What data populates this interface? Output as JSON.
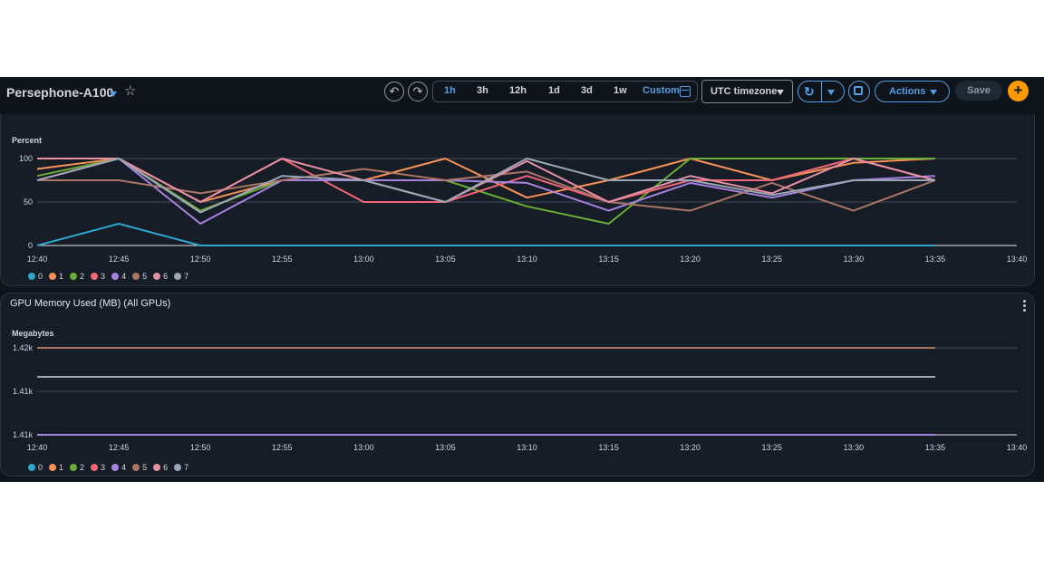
{
  "header": {
    "title": "Persephone-A100",
    "ranges": [
      "1h",
      "3h",
      "12h",
      "1d",
      "3d",
      "1w"
    ],
    "active_range": "1h",
    "custom_label": "Custom",
    "timezone": "UTC timezone",
    "actions_label": "Actions",
    "save_label": "Save"
  },
  "colors": {
    "accent": "#539fe5",
    "add_button": "#ff9900",
    "background": "#0f141a",
    "panel": "#161d26"
  },
  "icons": [
    "undo-icon",
    "redo-icon",
    "calendar-icon",
    "refresh-icon",
    "fullscreen-icon",
    "star-icon",
    "plus-icon",
    "kebab-icon"
  ],
  "series_colors": [
    "#2ea5cf",
    "#f89256",
    "#69ae34",
    "#f0677a",
    "#a783e1",
    "#ab7566",
    "#e58fa1",
    "#9ba7b6"
  ],
  "legend": [
    "0",
    "1",
    "2",
    "3",
    "4",
    "5",
    "6",
    "7"
  ],
  "panel1": {
    "unit": "Percent"
  },
  "panel2": {
    "title": "GPU Memory Used (MB) (All GPUs)",
    "unit": "Megabytes"
  },
  "chart_data": [
    {
      "type": "line",
      "title": "",
      "ylabel": "Percent",
      "x": [
        "12:40",
        "12:45",
        "12:50",
        "12:55",
        "13:00",
        "13:05",
        "13:10",
        "13:15",
        "13:20",
        "13:25",
        "13:30",
        "13:35"
      ],
      "x_ticks": [
        "12:40",
        "12:45",
        "12:50",
        "12:55",
        "13:00",
        "13:05",
        "13:10",
        "13:15",
        "13:20",
        "13:25",
        "13:30",
        "13:35",
        "13:40"
      ],
      "y_ticks": [
        "100",
        "50",
        "0"
      ],
      "ylim": [
        0,
        100
      ],
      "grid": true,
      "legend_placement": "bottom-left",
      "series": [
        {
          "name": "0",
          "values": [
            0,
            25,
            0,
            0,
            0,
            0,
            0,
            0,
            0,
            0,
            0,
            0
          ]
        },
        {
          "name": "1",
          "values": [
            88,
            100,
            50,
            75,
            75,
            100,
            55,
            75,
            100,
            75,
            95,
            100
          ]
        },
        {
          "name": "2",
          "values": [
            80,
            100,
            40,
            75,
            75,
            75,
            45,
            25,
            100,
            100,
            100,
            100
          ]
        },
        {
          "name": "3",
          "values": [
            75,
            100,
            50,
            100,
            50,
            50,
            80,
            50,
            75,
            75,
            100,
            75
          ]
        },
        {
          "name": "4",
          "values": [
            100,
            100,
            25,
            75,
            75,
            75,
            72,
            40,
            72,
            55,
            75,
            80
          ]
        },
        {
          "name": "5",
          "values": [
            75,
            75,
            60,
            75,
            88,
            75,
            85,
            50,
            40,
            72,
            40,
            75
          ]
        },
        {
          "name": "6",
          "values": [
            100,
            100,
            50,
            100,
            75,
            50,
            97,
            50,
            80,
            60,
            100,
            75
          ]
        },
        {
          "name": "7",
          "values": [
            75,
            100,
            38,
            80,
            75,
            50,
            100,
            75,
            75,
            58,
            75,
            75
          ]
        }
      ]
    },
    {
      "type": "line",
      "title": "GPU Memory Used (MB) (All GPUs)",
      "ylabel": "Megabytes",
      "x": [
        "12:40",
        "12:45",
        "12:50",
        "12:55",
        "13:00",
        "13:05",
        "13:10",
        "13:15",
        "13:20",
        "13:25",
        "13:30",
        "13:35"
      ],
      "x_ticks": [
        "12:40",
        "12:45",
        "12:50",
        "12:55",
        "13:00",
        "13:05",
        "13:10",
        "13:15",
        "13:20",
        "13:25",
        "13:30",
        "13:35",
        "13:40"
      ],
      "y_ticks": [
        "1.42k",
        "1.41k",
        "1.41k"
      ],
      "ylim": [
        1405,
        1420
      ],
      "grid": true,
      "legend_placement": "bottom-left",
      "series": [
        {
          "name": "0",
          "values": [
            1405,
            1405,
            1405,
            1405,
            1405,
            1405,
            1405,
            1405,
            1405,
            1405,
            1405,
            1405
          ]
        },
        {
          "name": "4",
          "values": [
            1405,
            1405,
            1405,
            1405,
            1405,
            1405,
            1405,
            1405,
            1405,
            1405,
            1405,
            1405
          ]
        },
        {
          "name": "5",
          "values": [
            1420,
            1420,
            1420,
            1420,
            1420,
            1420,
            1420,
            1420,
            1420,
            1420,
            1420,
            1420
          ]
        },
        {
          "name": "7",
          "values": [
            1415,
            1415,
            1415,
            1415,
            1415,
            1415,
            1415,
            1415,
            1415,
            1415,
            1415,
            1415
          ]
        }
      ]
    }
  ]
}
